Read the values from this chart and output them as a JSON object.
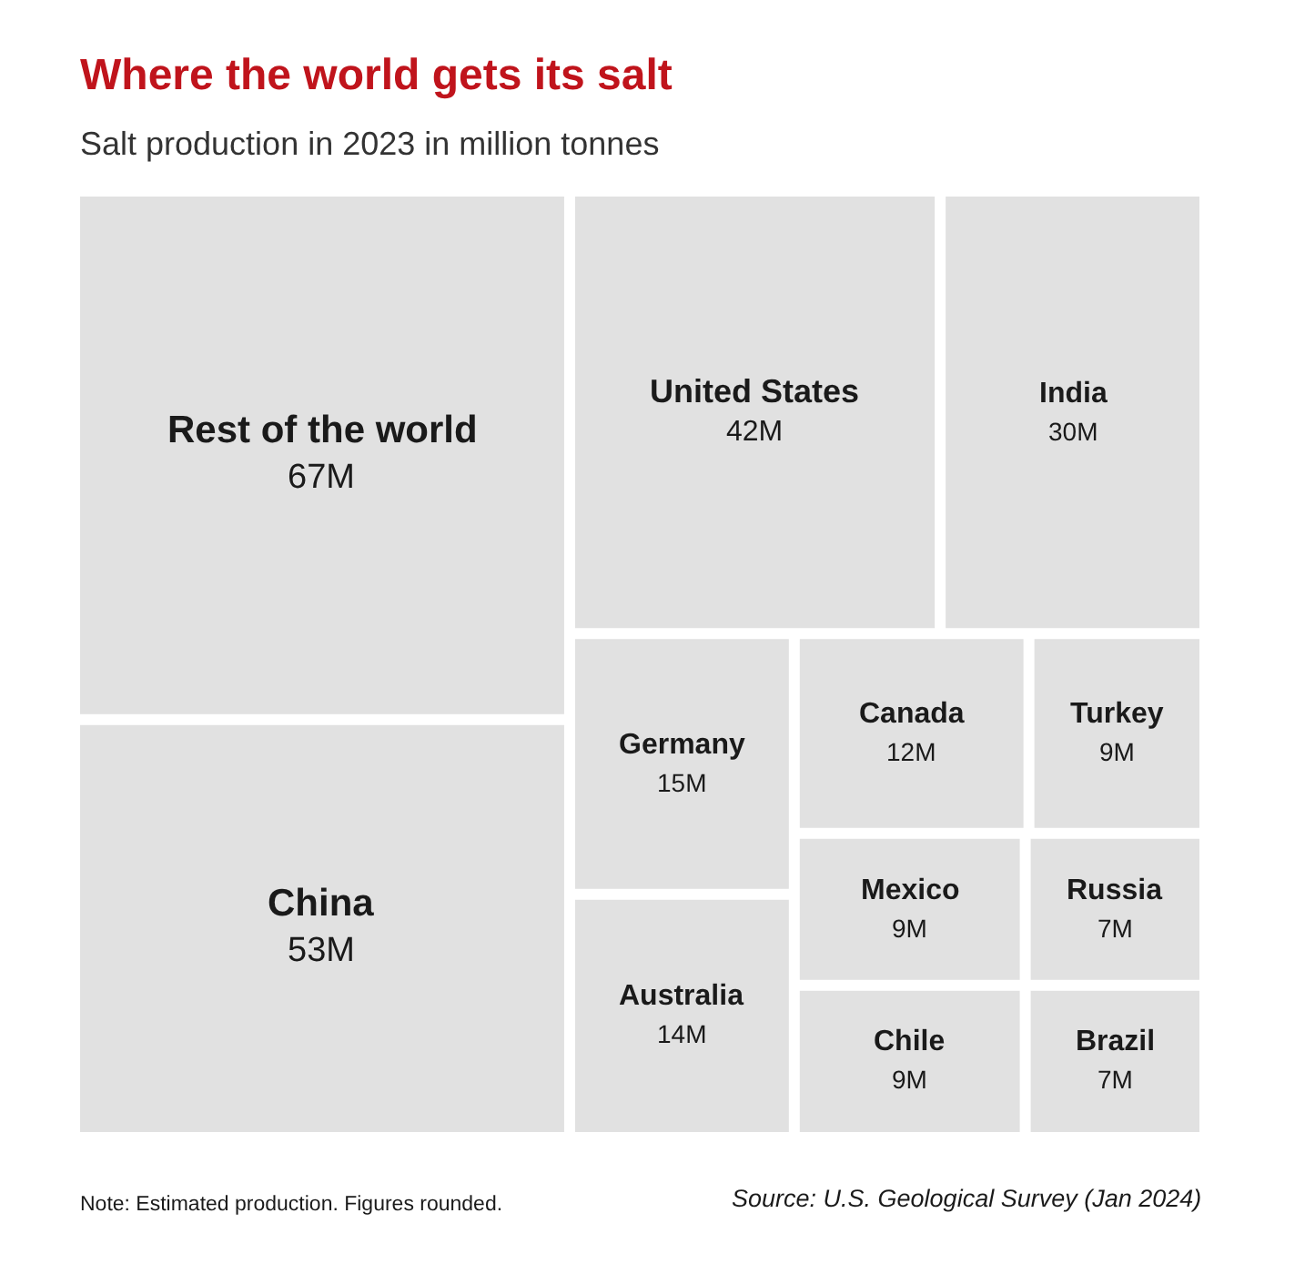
{
  "chart_data": {
    "type": "other",
    "title": "Where the world gets its salt",
    "subtitle": "Salt production in 2023 in million tonnes",
    "categories": [
      "China",
      "United States",
      "India",
      "Turkey",
      "Canada",
      "Mexico",
      "Germany",
      "Russia",
      "Australia",
      "Rest of the world",
      "Chile",
      "Brazil"
    ],
    "values": [
      53,
      42,
      30,
      9,
      12,
      9,
      15,
      7,
      14,
      67,
      9,
      7
    ],
    "value_labels": [
      "53M",
      "42M",
      "30M",
      "9M",
      "12M",
      "9M",
      "15M",
      "7M",
      "14M",
      "67M",
      "9M",
      "7M"
    ],
    "colors": [
      "#e1e1e1",
      "#e1e1e1",
      "#e1e1e1",
      "#e1e1e1",
      "#e1e1e1",
      "#e1e1e1",
      "#e1e1e1",
      "#e1e1e1",
      "#e1e1e1",
      "#e1e1e1",
      "#e1e1e1",
      "#e1e1e1"
    ],
    "annotations": [
      "Note: Estimated production. Figures rounded.",
      "Source: U.S. Geological Survey (Jan 2024)"
    ]
  }
}
